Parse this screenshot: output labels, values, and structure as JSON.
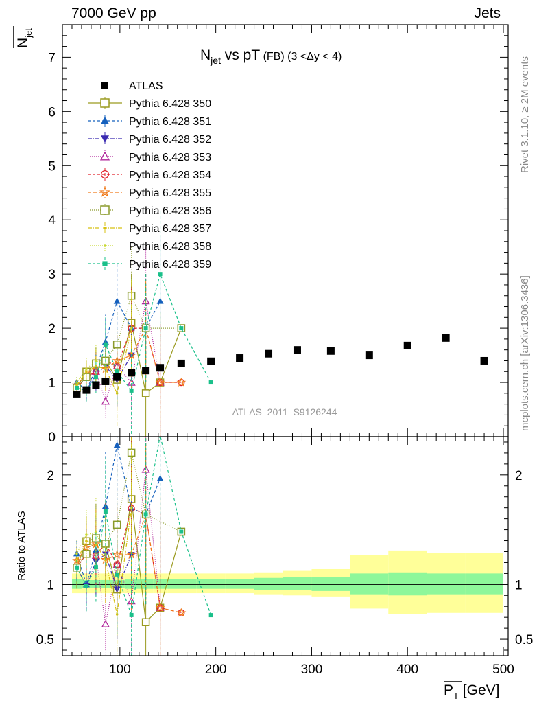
{
  "header": {
    "left": "7000 GeV pp",
    "right": "Jets"
  },
  "side": {
    "rivet": "Rivet 3.1.10, ≥ 2M events",
    "mcplots": "mcplots.cern.ch [arXiv:1306.3436]"
  },
  "chart_data": {
    "type": "scatter",
    "title": {
      "main": "N",
      "sub": "jet",
      "rest": " vs pT",
      "small": " (FB)  (3 <Δy < 4)"
    },
    "analysis_label": "ATLAS_2011_S9126244",
    "xlabel": {
      "main": "P",
      "sub": "T",
      "unit": " [GeV]"
    },
    "ylabel": {
      "main": "N",
      "sub": "jet"
    },
    "ratio_ylabel": "Ratio to ATLAS",
    "xlim": [
      40,
      505
    ],
    "ylim": [
      0,
      7.6
    ],
    "ratio_ylim": [
      0.35,
      2.35
    ],
    "x_ticks": [
      100,
      200,
      300,
      400,
      500
    ],
    "y_ticks": [
      0,
      1,
      2,
      3,
      4,
      5,
      6,
      7
    ],
    "ratio_ticks_labeled": [
      0.5,
      1,
      2
    ],
    "legend": {
      "placement": "top-left"
    },
    "data": {
      "name": "ATLAS",
      "x": [
        55,
        65,
        75,
        85,
        97,
        112,
        127,
        142,
        164,
        195,
        225,
        255,
        285,
        320,
        360,
        400,
        440,
        480
      ],
      "y": [
        0.78,
        0.86,
        0.95,
        1.02,
        1.1,
        1.18,
        1.22,
        1.27,
        1.35,
        1.39,
        1.45,
        1.53,
        1.6,
        1.58,
        1.5,
        1.68,
        1.82,
        1.4
      ]
    },
    "band": {
      "edges": [
        50,
        60,
        70,
        80,
        90,
        105,
        120,
        135,
        150,
        180,
        210,
        240,
        270,
        300,
        340,
        380,
        420,
        460,
        500
      ],
      "inner": [
        [
          0.96,
          1.05
        ],
        [
          0.97,
          1.04
        ],
        [
          0.97,
          1.04
        ],
        [
          0.97,
          1.04
        ],
        [
          0.97,
          1.04
        ],
        [
          0.96,
          1.05
        ],
        [
          0.96,
          1.05
        ],
        [
          0.96,
          1.05
        ],
        [
          0.96,
          1.05
        ],
        [
          0.96,
          1.05
        ],
        [
          0.96,
          1.05
        ],
        [
          0.95,
          1.06
        ],
        [
          0.95,
          1.07
        ],
        [
          0.94,
          1.07
        ],
        [
          0.91,
          1.1
        ],
        [
          0.9,
          1.11
        ],
        [
          0.91,
          1.1
        ],
        [
          0.91,
          1.1
        ],
        [
          0.73,
          1.4
        ]
      ],
      "outer": [
        [
          0.92,
          1.1
        ],
        [
          0.92,
          1.1
        ],
        [
          0.92,
          1.1
        ],
        [
          0.92,
          1.1
        ],
        [
          0.92,
          1.1
        ],
        [
          0.92,
          1.1
        ],
        [
          0.92,
          1.1
        ],
        [
          0.92,
          1.1
        ],
        [
          0.92,
          1.1
        ],
        [
          0.92,
          1.1
        ],
        [
          0.92,
          1.1
        ],
        [
          0.91,
          1.11
        ],
        [
          0.9,
          1.13
        ],
        [
          0.89,
          1.14
        ],
        [
          0.78,
          1.27
        ],
        [
          0.73,
          1.31
        ],
        [
          0.74,
          1.29
        ],
        [
          0.74,
          1.29
        ],
        [
          0.3,
          1.7
        ]
      ]
    },
    "series": [
      {
        "name": "Pythia 6.428 350",
        "color": "#9a9a1f",
        "dash": "",
        "marker": "open-square",
        "x": [
          55,
          65,
          75,
          85,
          97,
          112,
          127,
          142,
          164
        ],
        "y": [
          0.9,
          1.2,
          1.35,
          1.4,
          1.05,
          2.1,
          0.8,
          1.0,
          2.0
        ],
        "err": [
          0.15,
          0.2,
          0.3,
          0.4,
          0.5,
          0.9,
          1.2,
          1.3,
          0
        ]
      },
      {
        "name": "Pythia 6.428 351",
        "color": "#1560bd",
        "dash": "4 3",
        "marker": "filled-triangle-up",
        "x": [
          55,
          65,
          75,
          85,
          97,
          112,
          127,
          142
        ],
        "y": [
          1.0,
          0.86,
          1.25,
          1.75,
          2.5,
          2.0,
          2.0,
          2.5
        ],
        "err": [
          0.1,
          0.2,
          0.3,
          0.5,
          0.7,
          0.9,
          1.0,
          1.2
        ]
      },
      {
        "name": "Pythia 6.428 352",
        "color": "#3a2ab0",
        "dash": "6 2 1 2",
        "marker": "filled-triangle-down",
        "x": [
          55,
          65,
          75,
          85,
          97,
          112
        ],
        "y": [
          0.9,
          0.85,
          1.15,
          1.3,
          1.05,
          1.5
        ],
        "err": [
          0.1,
          0.2,
          0.3,
          0.4,
          0.5,
          0.6
        ]
      },
      {
        "name": "Pythia 6.428 353",
        "color": "#b0269a",
        "dash": "1 2",
        "marker": "open-triangle-up",
        "x": [
          55,
          65,
          75,
          85,
          97,
          112,
          127,
          142
        ],
        "y": [
          0.9,
          1.1,
          1.2,
          0.65,
          1.3,
          1.0,
          2.5,
          1.0
        ],
        "err": [
          0.1,
          0.2,
          0.3,
          0.3,
          0.5,
          0.8,
          1.0,
          1.1
        ]
      },
      {
        "name": "Pythia 6.428 354",
        "color": "#e0202a",
        "dash": "4 3",
        "marker": "open-circle",
        "x": [
          55,
          65,
          75,
          85,
          97,
          112,
          127,
          142,
          164
        ],
        "y": [
          0.9,
          1.1,
          1.2,
          1.4,
          1.3,
          2.0,
          2.0,
          1.0,
          1.0
        ],
        "err": [
          0.1,
          0.2,
          0.3,
          0.4,
          0.5,
          0.8,
          1.0,
          1.1,
          0
        ]
      },
      {
        "name": "Pythia 6.428 355",
        "color": "#f07a1a",
        "dash": "5 3",
        "marker": "open-star",
        "x": [
          55,
          65,
          75,
          85,
          97,
          112,
          127,
          142,
          164
        ],
        "y": [
          0.95,
          1.15,
          1.3,
          1.25,
          1.4,
          1.5,
          2.0,
          1.0,
          1.0
        ],
        "err": [
          0.1,
          0.2,
          0.3,
          0.4,
          0.5,
          0.6,
          0.9,
          1.0,
          0
        ]
      },
      {
        "name": "Pythia 6.428 356",
        "color": "#8a9a2a",
        "dash": "1 2",
        "marker": "open-square",
        "x": [
          55,
          65,
          75,
          85,
          97,
          112,
          127,
          164
        ],
        "y": [
          0.9,
          1.1,
          1.35,
          1.4,
          1.7,
          2.6,
          2.0,
          2.0
        ],
        "err": [
          0.1,
          0.2,
          0.3,
          0.4,
          0.6,
          0.9,
          1.0,
          0
        ]
      },
      {
        "name": "Pythia 6.428 357",
        "color": "#d8c010",
        "dash": "6 2 1 2",
        "marker": "small-dot",
        "x": [
          55,
          65,
          75,
          85,
          97,
          112
        ],
        "y": [
          0.95,
          1.2,
          1.3,
          1.25,
          0.8,
          2.0
        ],
        "err": [
          0.1,
          0.2,
          0.3,
          0.4,
          0.6,
          0.9
        ]
      },
      {
        "name": "Pythia 6.428 358",
        "color": "#c8d830",
        "dash": "1 2",
        "marker": "small-dot",
        "x": [
          55,
          65,
          75,
          85,
          97,
          112
        ],
        "y": [
          1.0,
          1.25,
          1.4,
          1.3,
          1.2,
          2.0
        ],
        "err": [
          0.1,
          0.2,
          0.3,
          0.4,
          0.6,
          0.9
        ]
      },
      {
        "name": "Pythia 6.428 359",
        "color": "#1ac08a",
        "dash": "4 3",
        "marker": "filled-square-small",
        "x": [
          55,
          65,
          75,
          85,
          97,
          112,
          127,
          142,
          164,
          195
        ],
        "y": [
          0.9,
          0.85,
          1.1,
          1.7,
          1.2,
          0.85,
          2.0,
          3.0,
          2.0,
          1.0
        ],
        "err": [
          0.1,
          0.2,
          0.3,
          0.5,
          0.6,
          0.8,
          1.0,
          1.2,
          0,
          0
        ]
      }
    ]
  }
}
